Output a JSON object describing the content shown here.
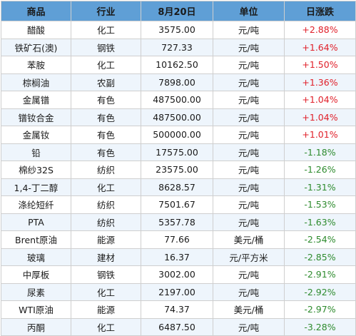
{
  "colors": {
    "header_bg": "#5f9fd6",
    "up": "#e0202a",
    "down": "#2e8b2e",
    "stripe": "#eef5fc"
  },
  "headers": [
    "商品",
    "行业",
    "8月20日",
    "单位",
    "日涨跌"
  ],
  "rows": [
    {
      "name": "醋酸",
      "sector": "化工",
      "price": "3575.00",
      "unit": "元/吨",
      "change": "+2.88%",
      "dir": "up"
    },
    {
      "name": "铁矿石(澳)",
      "sector": "钢铁",
      "price": "727.33",
      "unit": "元/吨",
      "change": "+1.64%",
      "dir": "up"
    },
    {
      "name": "苯胺",
      "sector": "化工",
      "price": "10162.50",
      "unit": "元/吨",
      "change": "+1.50%",
      "dir": "up"
    },
    {
      "name": "棕榈油",
      "sector": "农副",
      "price": "7898.00",
      "unit": "元/吨",
      "change": "+1.36%",
      "dir": "up"
    },
    {
      "name": "金属镨",
      "sector": "有色",
      "price": "487500.00",
      "unit": "元/吨",
      "change": "+1.04%",
      "dir": "up"
    },
    {
      "name": "镨钕合金",
      "sector": "有色",
      "price": "487500.00",
      "unit": "元/吨",
      "change": "+1.04%",
      "dir": "up"
    },
    {
      "name": "金属钕",
      "sector": "有色",
      "price": "500000.00",
      "unit": "元/吨",
      "change": "+1.01%",
      "dir": "up"
    },
    {
      "name": "铅",
      "sector": "有色",
      "price": "17575.00",
      "unit": "元/吨",
      "change": "-1.18%",
      "dir": "down"
    },
    {
      "name": "棉纱32S",
      "sector": "纺织",
      "price": "23575.00",
      "unit": "元/吨",
      "change": "-1.26%",
      "dir": "down"
    },
    {
      "name": "1,4-丁二醇",
      "sector": "化工",
      "price": "8628.57",
      "unit": "元/吨",
      "change": "-1.31%",
      "dir": "down"
    },
    {
      "name": "涤纶短纤",
      "sector": "纺织",
      "price": "7501.67",
      "unit": "元/吨",
      "change": "-1.53%",
      "dir": "down"
    },
    {
      "name": "PTA",
      "sector": "纺织",
      "price": "5357.78",
      "unit": "元/吨",
      "change": "-1.63%",
      "dir": "down"
    },
    {
      "name": "Brent原油",
      "sector": "能源",
      "price": "77.66",
      "unit": "美元/桶",
      "change": "-2.54%",
      "dir": "down"
    },
    {
      "name": "玻璃",
      "sector": "建材",
      "price": "16.37",
      "unit": "元/平方米",
      "change": "-2.85%",
      "dir": "down"
    },
    {
      "name": "中厚板",
      "sector": "钢铁",
      "price": "3002.00",
      "unit": "元/吨",
      "change": "-2.91%",
      "dir": "down"
    },
    {
      "name": "尿素",
      "sector": "化工",
      "price": "2197.00",
      "unit": "元/吨",
      "change": "-2.92%",
      "dir": "down"
    },
    {
      "name": "WTI原油",
      "sector": "能源",
      "price": "74.37",
      "unit": "美元/桶",
      "change": "-2.97%",
      "dir": "down"
    },
    {
      "name": "丙酮",
      "sector": "化工",
      "price": "6487.50",
      "unit": "元/吨",
      "change": "-3.28%",
      "dir": "down"
    }
  ]
}
